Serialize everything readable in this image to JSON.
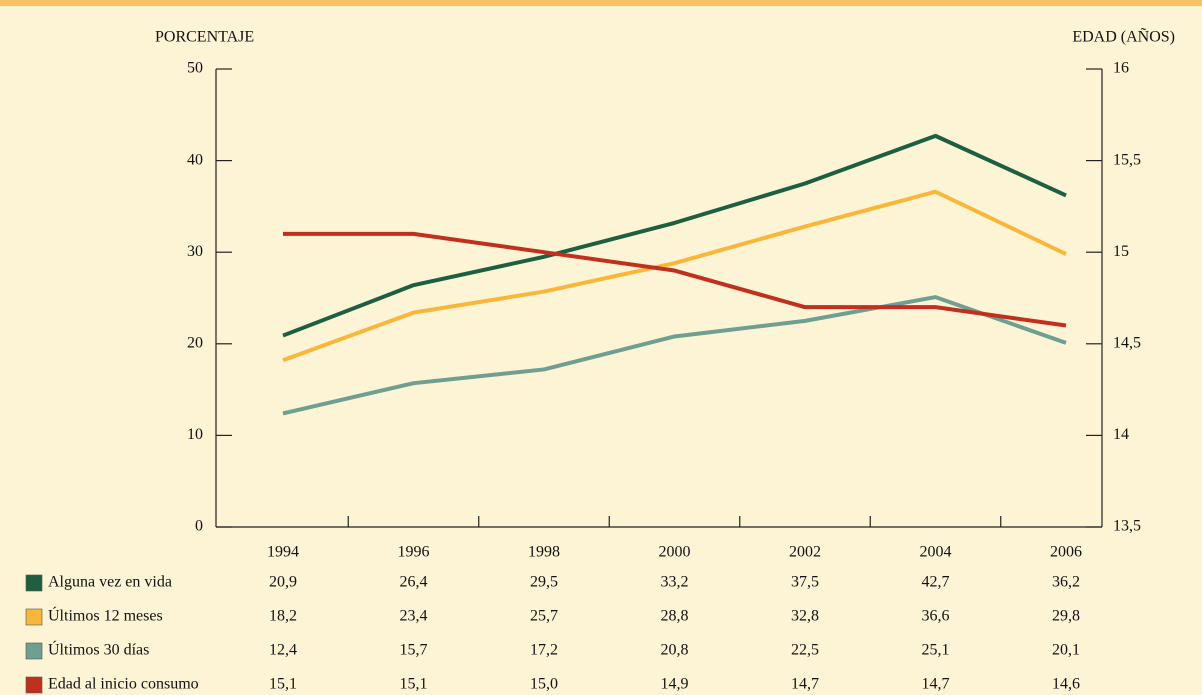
{
  "chart_data": {
    "type": "line",
    "y_label": "PORCENTAJE",
    "y2_label": "EDAD (AÑOS)",
    "categories": [
      "1994",
      "1996",
      "1998",
      "2000",
      "2002",
      "2004",
      "2006"
    ],
    "ylim": [
      0,
      50
    ],
    "yticks": [
      0,
      10,
      20,
      30,
      40,
      50
    ],
    "y2lim": [
      13.5,
      16
    ],
    "y2ticks": [
      {
        "value": 13.5,
        "label": "13,5"
      },
      {
        "value": 14,
        "label": "14"
      },
      {
        "value": 14.5,
        "label": "14,5"
      },
      {
        "value": 15,
        "label": "15"
      },
      {
        "value": 15.5,
        "label": "15,5"
      },
      {
        "value": 16,
        "label": "16"
      }
    ],
    "grid": false,
    "series": [
      {
        "name": "Alguna vez en vida",
        "color": "#1d5f40",
        "values": [
          20.9,
          26.4,
          29.5,
          33.2,
          37.5,
          42.7,
          36.2
        ],
        "value_labels": [
          "20,9",
          "26,4",
          "29,5",
          "33,2",
          "37,5",
          "42,7",
          "36,2"
        ]
      },
      {
        "name": "Últimos 12 meses",
        "color": "#f8b73a",
        "values": [
          18.2,
          23.4,
          25.7,
          28.8,
          32.8,
          36.6,
          29.8
        ],
        "value_labels": [
          "18,2",
          "23,4",
          "25,7",
          "28,8",
          "32,8",
          "36,6",
          "29,8"
        ]
      },
      {
        "name": "Últimos 30 días",
        "color": "#6e9f91",
        "values": [
          12.4,
          15.7,
          17.2,
          20.8,
          22.5,
          25.1,
          20.1
        ],
        "value_labels": [
          "12,4",
          "15,7",
          "17,2",
          "20,8",
          "22,5",
          "25,1",
          "20,1"
        ]
      },
      {
        "name": "Edad al inicio consumo",
        "color": "#c0301f",
        "axis": "y2",
        "values": [
          15.1,
          15.1,
          15.0,
          14.9,
          14.7,
          14.7,
          14.6
        ],
        "value_labels": [
          "15,1",
          "15,1",
          "15,0",
          "14,9",
          "14,7",
          "14,7",
          "14,6"
        ]
      }
    ]
  }
}
